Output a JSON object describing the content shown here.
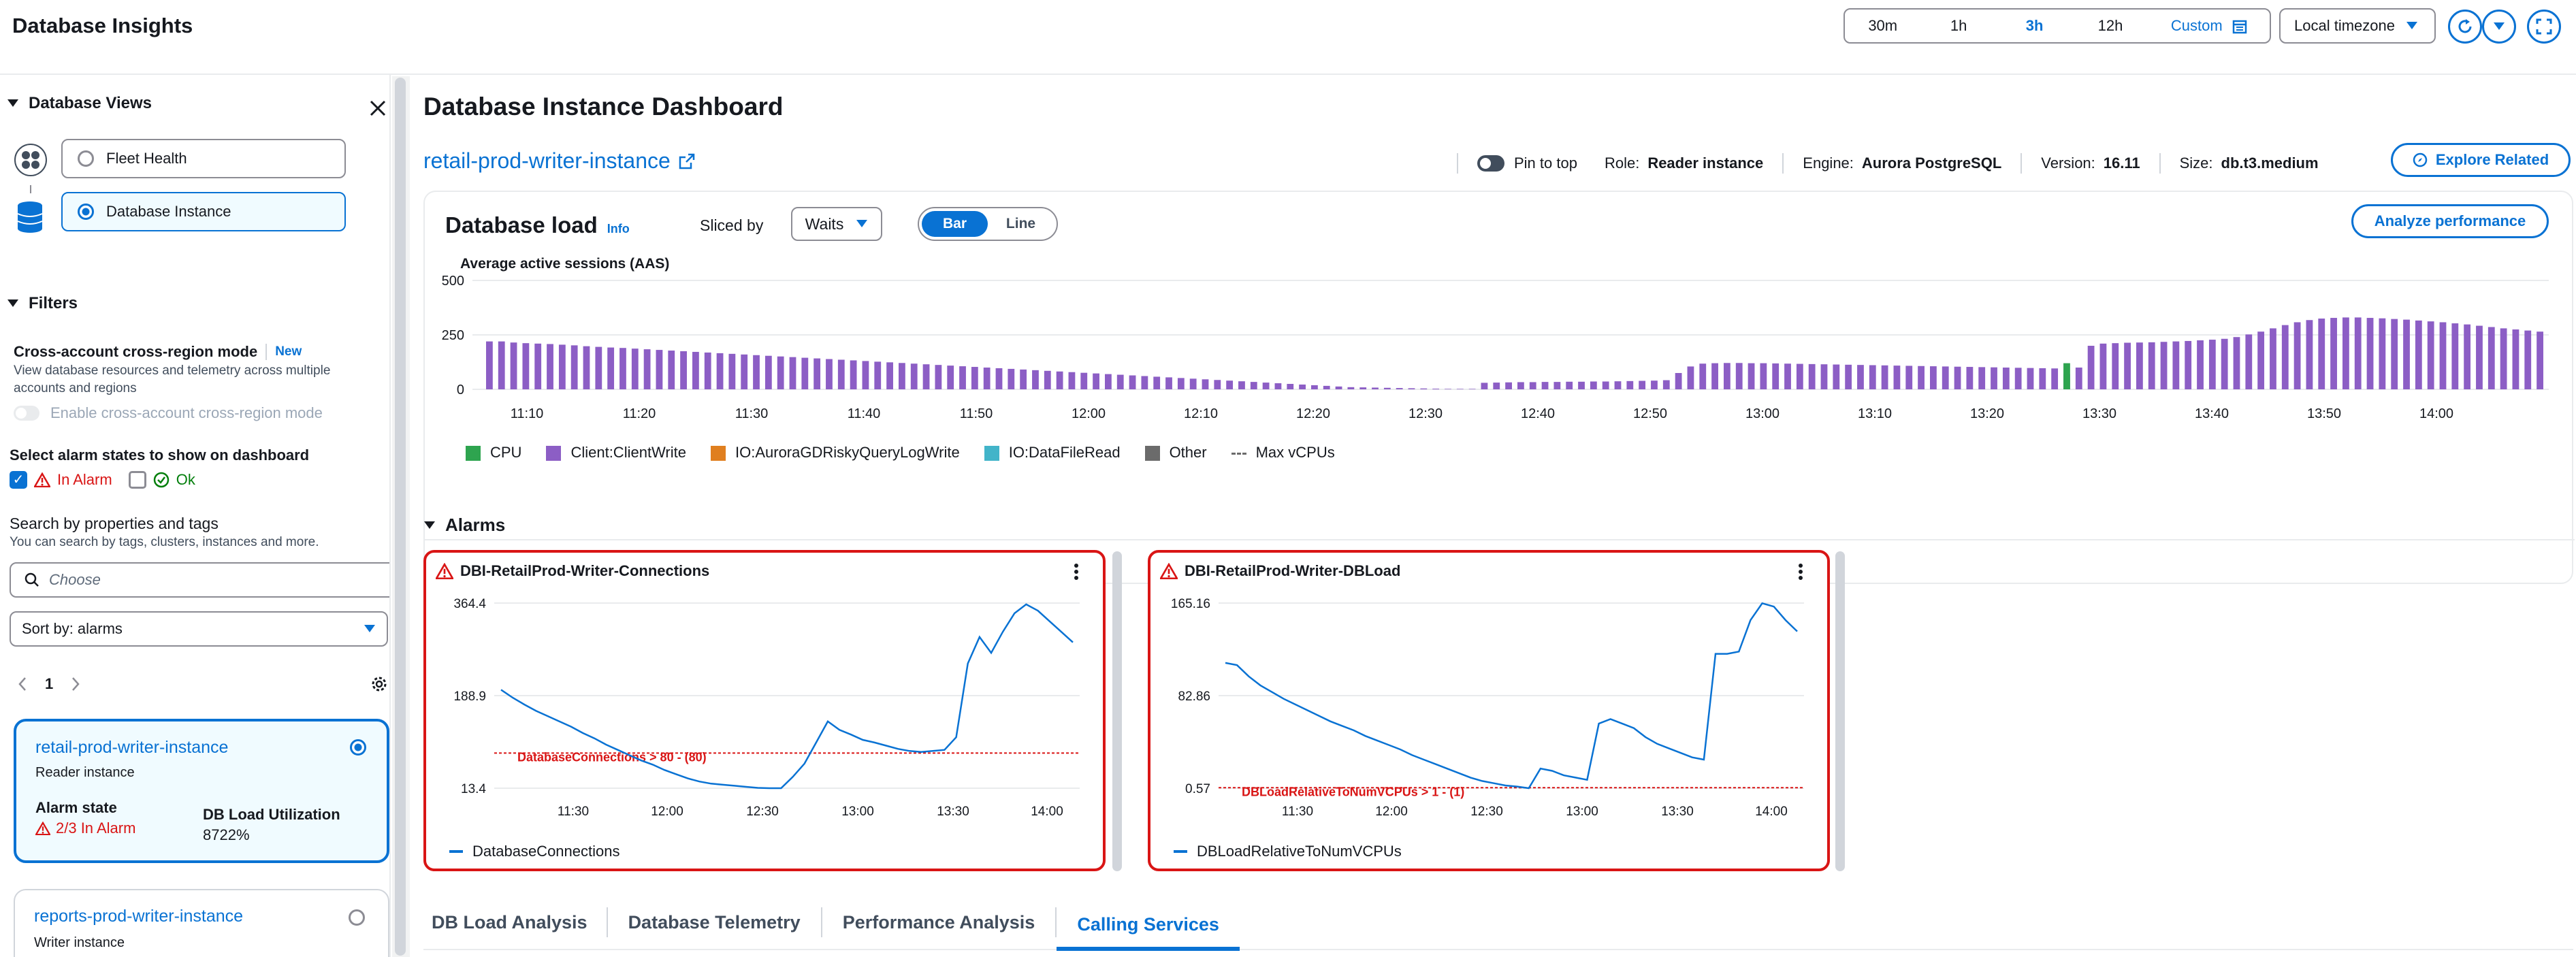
{
  "header": {
    "title": "Database Insights",
    "time_ranges": [
      "30m",
      "1h",
      "3h",
      "12h"
    ],
    "time_range_selected": "3h",
    "custom_label": "Custom",
    "timezone": "Local timezone"
  },
  "left": {
    "views_title": "Database Views",
    "views": [
      {
        "label": "Fleet Health",
        "selected": false
      },
      {
        "label": "Database Instance",
        "selected": true
      }
    ],
    "filters_title": "Filters",
    "cross_account_title": "Cross-account cross-region mode",
    "cross_account_badge": "New",
    "cross_account_desc_1": "View database resources and telemetry across multiple",
    "cross_account_desc_2": "accounts and regions",
    "cross_account_toggle": "Enable cross-account cross-region mode",
    "alarm_states_title": "Select alarm states to show on dashboard",
    "alarm_state_in_alarm": "In Alarm",
    "alarm_state_ok": "Ok",
    "search_title": "Search by properties and tags",
    "search_desc": "You can search by tags, clusters, instances and more.",
    "search_placeholder": "Choose",
    "sort_label": "Sort by: alarms",
    "page_number": "1",
    "instances": [
      {
        "name": "retail-prod-writer-instance",
        "role": "Reader instance",
        "alarm_state_label": "Alarm state",
        "alarm_state_value": "2/3 In Alarm",
        "db_load_label": "DB Load Utilization",
        "db_load_value": "8722%"
      },
      {
        "name": "reports-prod-writer-instance",
        "role": "Writer instance"
      }
    ]
  },
  "main": {
    "title": "Database Instance Dashboard",
    "instance_link": "retail-prod-writer-instance",
    "pin_label": "Pin to top",
    "role_label": "Role:",
    "role_value": "Reader instance",
    "engine_label": "Engine:",
    "engine_value": "Aurora PostgreSQL",
    "version_label": "Version:",
    "version_value": "16.11",
    "size_label": "Size:",
    "size_value": "db.t3.medium",
    "explore_button": "Explore Related",
    "db_load": {
      "title": "Database load",
      "info": "Info",
      "sliced_by_label": "Sliced by",
      "sliced_by_value": "Waits",
      "view_bar": "Bar",
      "view_line": "Line",
      "analyze_button": "Analyze performance"
    },
    "alarms_title": "Alarms",
    "tabs": [
      "DB Load Analysis",
      "Database Telemetry",
      "Performance Analysis",
      "Calling Services"
    ],
    "active_tab": "Calling Services",
    "colors": {
      "accent": "#0972d3",
      "alarm": "#d91515",
      "client_write": "#8c5ec5",
      "cpu": "#2ea44f"
    }
  },
  "chart_data": [
    {
      "type": "bar",
      "title": "Database load",
      "ylabel": "Average active sessions (AAS)",
      "yticks": [
        "500",
        "250",
        "0"
      ],
      "ylim": [
        0,
        500
      ],
      "xticks": [
        "11:10",
        "11:20",
        "11:30",
        "11:40",
        "11:50",
        "12:00",
        "12:10",
        "12:20",
        "12:30",
        "12:40",
        "12:50",
        "13:00",
        "13:10",
        "13:20",
        "13:30",
        "13:40",
        "13:50",
        "14:00"
      ],
      "legend": [
        "CPU",
        "Client:ClientWrite",
        "IO:AuroraGDRiskyQueryLogWrite",
        "IO:DataFileRead",
        "Other",
        "Max vCPUs"
      ],
      "legend_colors": [
        "#2ea44f",
        "#8c5ec5",
        "#e07f1f",
        "#42b4c9",
        "#6b6b6b",
        "#6b6b6b"
      ],
      "series": [
        {
          "name": "Client:ClientWrite",
          "values": [
            220,
            220,
            215,
            212,
            210,
            208,
            205,
            202,
            198,
            195,
            192,
            190,
            187,
            184,
            181,
            178,
            175,
            172,
            169,
            166,
            163,
            160,
            157,
            154,
            151,
            148,
            145,
            142,
            139,
            136,
            133,
            130,
            127,
            124,
            121,
            118,
            115,
            112,
            109,
            106,
            103,
            100,
            97,
            94,
            91,
            88,
            85,
            82,
            79,
            76,
            73,
            70,
            67,
            64,
            61,
            58,
            55,
            52,
            49,
            46,
            43,
            40,
            37,
            34,
            31,
            28,
            25,
            22,
            19,
            16,
            13,
            10,
            9,
            8,
            7,
            6,
            5,
            4,
            3,
            2,
            2,
            2,
            30,
            31,
            32,
            33,
            33,
            34,
            34,
            35,
            35,
            36,
            36,
            37,
            38,
            39,
            40,
            42,
            75,
            105,
            118,
            120,
            121,
            121,
            120,
            120,
            119,
            118,
            117,
            116,
            115,
            114,
            113,
            112,
            111,
            110,
            109,
            108,
            107,
            106,
            105,
            104,
            103,
            102,
            101,
            100,
            99,
            98,
            97,
            96,
            70,
            100,
            200,
            210,
            212,
            214,
            215,
            216,
            218,
            220,
            222,
            225,
            228,
            232,
            240,
            252,
            265,
            280,
            295,
            308,
            318,
            325,
            328,
            330,
            330,
            328,
            326,
            323,
            320,
            316,
            312,
            308,
            303,
            298,
            292,
            286,
            280,
            275,
            270,
            265
          ]
        },
        {
          "name": "CPU",
          "values": [
            0,
            0,
            0,
            0,
            0,
            0,
            0,
            0,
            0,
            0,
            0,
            0,
            0,
            0,
            0,
            0,
            0,
            0,
            0,
            0,
            0,
            0,
            0,
            0,
            0,
            0,
            0,
            0,
            0,
            0,
            0,
            0,
            0,
            0,
            0,
            0,
            0,
            0,
            0,
            0,
            0,
            0,
            0,
            0,
            0,
            0,
            0,
            0,
            0,
            0,
            0,
            0,
            0,
            0,
            0,
            0,
            0,
            0,
            0,
            0,
            0,
            0,
            0,
            0,
            0,
            0,
            0,
            0,
            0,
            0,
            0,
            0,
            0,
            0,
            0,
            0,
            0,
            0,
            0,
            0,
            0,
            0,
            0,
            0,
            0,
            0,
            0,
            0,
            0,
            0,
            0,
            0,
            0,
            0,
            0,
            0,
            0,
            0,
            0,
            0,
            0,
            0,
            0,
            0,
            0,
            0,
            0,
            0,
            0,
            0,
            0,
            0,
            0,
            0,
            0,
            0,
            0,
            0,
            0,
            0,
            0,
            0,
            0,
            0,
            0,
            0,
            0,
            0,
            0,
            0,
            120,
            0,
            0,
            0,
            0,
            0,
            0,
            0,
            0,
            0,
            0,
            0,
            0,
            0,
            0,
            0,
            0,
            0,
            0,
            0,
            0,
            0,
            0,
            0,
            0,
            0,
            0,
            0,
            0,
            0,
            0,
            0,
            0,
            0,
            0,
            0,
            0,
            0,
            0,
            0
          ]
        }
      ]
    },
    {
      "type": "line",
      "title": "DBI-RetailProd-Writer-Connections",
      "yticks": [
        "364.4",
        "188.9",
        "13.4"
      ],
      "ylim": [
        13.4,
        364.4
      ],
      "xticks": [
        "11:30",
        "12:00",
        "12:30",
        "13:00",
        "13:30",
        "14:00"
      ],
      "threshold_label": "DatabaseConnections > 80 - (80)",
      "threshold": 80,
      "series": [
        {
          "name": "DatabaseConnections",
          "values": [
            200,
            185,
            172,
            160,
            150,
            140,
            130,
            118,
            108,
            96,
            86,
            76,
            66,
            58,
            48,
            40,
            32,
            26,
            22,
            20,
            18,
            16,
            14,
            13.4,
            13.4,
            35,
            60,
            100,
            140,
            124,
            115,
            105,
            100,
            94,
            88,
            84,
            82,
            84,
            86,
            110,
            250,
            300,
            270,
            310,
            345,
            362,
            350,
            330,
            310,
            290
          ]
        }
      ]
    },
    {
      "type": "line",
      "title": "DBI-RetailProd-Writer-DBLoad",
      "yticks": [
        "165.16",
        "82.86",
        "0.57"
      ],
      "ylim": [
        0.57,
        165.16
      ],
      "xticks": [
        "11:30",
        "12:00",
        "12:30",
        "13:00",
        "13:30",
        "14:00"
      ],
      "threshold_label": "DBLoadRelativeToNumVCPUs > 1 - (1)",
      "threshold": 1,
      "series": [
        {
          "name": "DBLoadRelativeToNumVCPUs",
          "values": [
            112,
            110,
            100,
            92,
            86,
            80,
            75,
            70,
            65,
            60,
            56,
            52,
            47,
            43,
            39,
            35,
            30,
            26,
            22,
            18,
            14,
            10,
            7,
            5,
            3,
            2,
            0.57,
            18,
            16,
            12,
            10,
            8,
            58,
            62,
            58,
            54,
            46,
            40,
            36,
            32,
            28,
            26,
            120,
            120,
            122,
            150,
            165,
            162,
            150,
            140
          ]
        }
      ]
    }
  ]
}
